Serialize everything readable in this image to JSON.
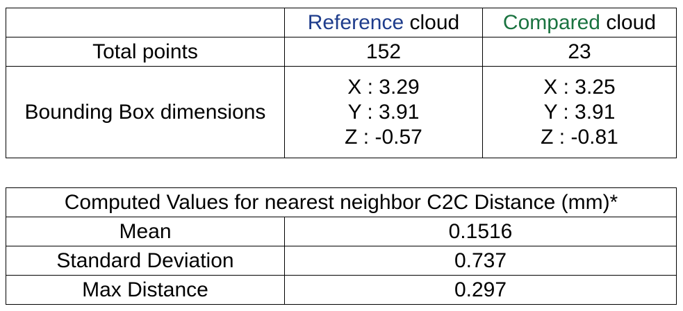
{
  "comparison_table": {
    "header": {
      "col1": "",
      "reference": {
        "colored": "Reference",
        "rest": " cloud"
      },
      "compared": {
        "colored": "Compared",
        "rest": " cloud"
      }
    },
    "rows": [
      {
        "label": "Total points",
        "reference": "152",
        "compared": "23"
      },
      {
        "label": "Bounding Box dimensions",
        "reference": [
          "X : 3.29",
          "Y : 3.91",
          "Z : -0.57"
        ],
        "compared": [
          "X : 3.25",
          "Y : 3.91",
          "Z : -0.81"
        ]
      }
    ]
  },
  "distance_table": {
    "title": "Computed Values for nearest neighbor C2C Distance (mm)*",
    "rows": [
      {
        "label": "Mean",
        "value": "0.1516"
      },
      {
        "label": "Standard Deviation",
        "value": "0.737"
      },
      {
        "label": "Max Distance",
        "value": "0.297"
      }
    ]
  },
  "colors": {
    "reference": "#1f3d8c",
    "compared": "#1a7340",
    "border": "#000000",
    "text": "#000000"
  }
}
